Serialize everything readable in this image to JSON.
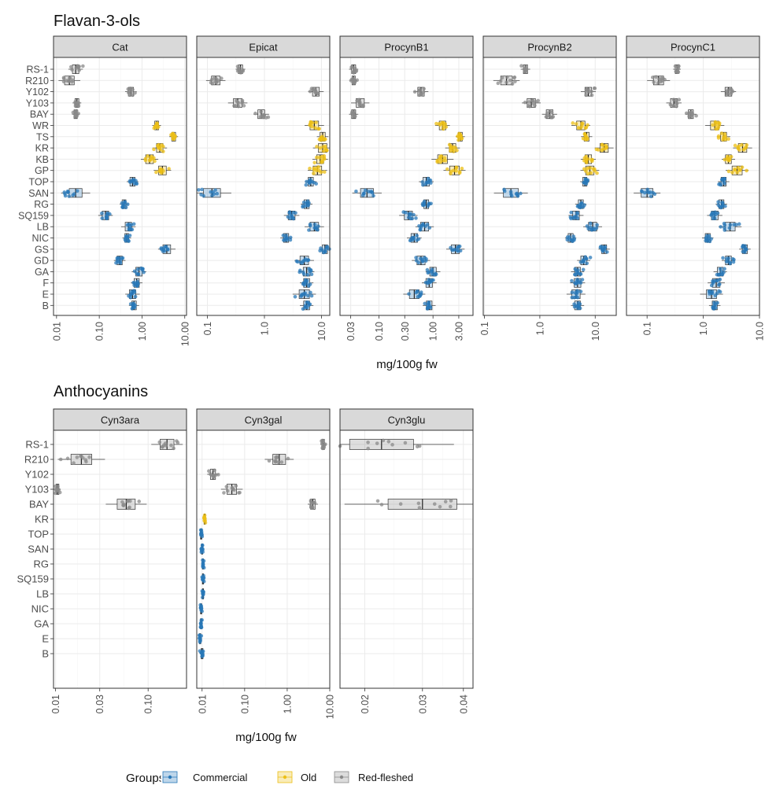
{
  "colors": {
    "Commercial": "#2878b8",
    "Old": "#ecbf16",
    "Red-fleshed": "#8a8a8a",
    "strip_fill": "#d9d9d9",
    "grid_major": "#ebebeb",
    "grid_minor": "#f5f5f5"
  },
  "legend": {
    "title": "Groups",
    "items": [
      "Commercial",
      "Old",
      "Red-fleshed"
    ],
    "position": "bottom"
  },
  "chart_data": [
    {
      "type": "boxplot",
      "orientation": "horizontal",
      "title": "Flavan-3-ols",
      "xlabel": "mg/100g fw",
      "x_scale": "log10",
      "grid": true,
      "categories": [
        "RS-1",
        "R210",
        "Y102",
        "Y103",
        "BAY",
        "WR",
        "TS",
        "KR",
        "KB",
        "GP",
        "TOP",
        "SAN",
        "RG",
        "SQ159",
        "LB",
        "NIC",
        "GS",
        "GD",
        "GA",
        "F",
        "E",
        "B"
      ],
      "category_groups": {
        "RS-1": "Red-fleshed",
        "R210": "Red-fleshed",
        "Y102": "Red-fleshed",
        "Y103": "Red-fleshed",
        "BAY": "Red-fleshed",
        "WR": "Old",
        "TS": "Old",
        "KR": "Old",
        "KB": "Old",
        "GP": "Old",
        "TOP": "Commercial",
        "SAN": "Commercial",
        "RG": "Commercial",
        "SQ159": "Commercial",
        "LB": "Commercial",
        "NIC": "Commercial",
        "GS": "Commercial",
        "GD": "Commercial",
        "GA": "Commercial",
        "F": "Commercial",
        "E": "Commercial",
        "B": "Commercial"
      },
      "panels": [
        {
          "name": "Cat",
          "xlim": [
            0.0085,
            11
          ],
          "ticks": [
            0.01,
            0.1,
            1,
            10
          ],
          "tick_labels": [
            "0.01",
            "0.10",
            "1.00",
            "10.00"
          ],
          "medians": [
            0.028,
            0.02,
            0.55,
            0.03,
            0.028,
            2.2,
            5.5,
            2.6,
            1.5,
            3.0,
            0.6,
            0.028,
            0.38,
            0.14,
            0.48,
            0.44,
            3.8,
            0.3,
            0.85,
            0.75,
            0.6,
            0.65
          ],
          "spreads": [
            0.1,
            0.15,
            0.08,
            0.06,
            0.05,
            0.06,
            0.06,
            0.1,
            0.12,
            0.12,
            0.08,
            0.2,
            0.06,
            0.1,
            0.1,
            0.06,
            0.12,
            0.08,
            0.1,
            0.08,
            0.1,
            0.07
          ]
        },
        {
          "name": "Epicat",
          "xlim": [
            0.065,
            14
          ],
          "ticks": [
            0.1,
            1,
            10
          ],
          "tick_labels": [
            "0.1",
            "1.0",
            "10.0"
          ],
          "medians": [
            0.38,
            0.14,
            8.0,
            0.34,
            0.88,
            7.5,
            10.5,
            10.5,
            9.5,
            8.5,
            6.5,
            0.12,
            5.5,
            3.0,
            7.5,
            2.4,
            11.5,
            5.0,
            5.5,
            5.5,
            5.0,
            5.5
          ],
          "spreads": [
            0.05,
            0.1,
            0.08,
            0.1,
            0.08,
            0.1,
            0.06,
            0.1,
            0.08,
            0.1,
            0.06,
            0.2,
            0.06,
            0.08,
            0.1,
            0.06,
            0.06,
            0.1,
            0.08,
            0.07,
            0.12,
            0.07
          ]
        },
        {
          "name": "ProcynB1",
          "xlim": [
            0.019,
            5.5
          ],
          "ticks": [
            0.03,
            0.1,
            0.3,
            1,
            3
          ],
          "tick_labels": [
            "0.03",
            "0.10",
            "0.30",
            "1.00",
            "3.00"
          ],
          "medians": [
            0.034,
            0.034,
            0.6,
            0.045,
            0.034,
            1.5,
            3.2,
            2.3,
            1.5,
            2.5,
            0.75,
            0.06,
            0.75,
            0.35,
            0.7,
            0.45,
            2.6,
            0.6,
            1.0,
            0.85,
            0.45,
            0.85
          ],
          "spreads": [
            0.05,
            0.04,
            0.08,
            0.1,
            0.05,
            0.08,
            0.05,
            0.08,
            0.12,
            0.12,
            0.08,
            0.16,
            0.06,
            0.1,
            0.1,
            0.08,
            0.1,
            0.1,
            0.08,
            0.08,
            0.12,
            0.07
          ]
        },
        {
          "name": "ProcynB2",
          "xlim": [
            0.095,
            24
          ],
          "ticks": [
            0.1,
            1,
            10
          ],
          "tick_labels": [
            "0.1",
            "1.0",
            "10.0"
          ],
          "medians": [
            0.55,
            0.25,
            7.5,
            0.7,
            1.5,
            5.5,
            7.0,
            14.5,
            7.5,
            8.0,
            6.5,
            0.3,
            5.5,
            4.5,
            9.0,
            3.6,
            14.5,
            6.2,
            4.8,
            4.8,
            4.5,
            4.8
          ],
          "spreads": [
            0.05,
            0.14,
            0.08,
            0.1,
            0.08,
            0.1,
            0.06,
            0.1,
            0.08,
            0.1,
            0.05,
            0.18,
            0.06,
            0.08,
            0.1,
            0.06,
            0.06,
            0.07,
            0.07,
            0.08,
            0.1,
            0.07
          ]
        },
        {
          "name": "ProcynC1",
          "xlim": [
            0.043,
            10
          ],
          "ticks": [
            0.1,
            1,
            10
          ],
          "tick_labels": [
            "0.1",
            "1.0",
            "10.0"
          ],
          "medians": [
            0.34,
            0.16,
            2.8,
            0.3,
            0.6,
            1.6,
            2.3,
            5.0,
            2.8,
            4.0,
            2.3,
            0.1,
            2.1,
            1.6,
            3.0,
            1.2,
            5.5,
            2.8,
            2.0,
            1.7,
            1.4,
            1.6
          ],
          "spreads": [
            0.04,
            0.12,
            0.08,
            0.08,
            0.06,
            0.1,
            0.07,
            0.1,
            0.07,
            0.12,
            0.06,
            0.14,
            0.06,
            0.08,
            0.12,
            0.06,
            0.06,
            0.07,
            0.07,
            0.09,
            0.12,
            0.06
          ]
        }
      ]
    },
    {
      "type": "boxplot",
      "orientation": "horizontal",
      "title": "Anthocyanins",
      "xlabel": "mg/100g fw",
      "x_scale": "log10",
      "grid": true,
      "categories": [
        "RS-1",
        "R210",
        "Y102",
        "Y103",
        "BAY",
        "KR",
        "TOP",
        "SAN",
        "RG",
        "SQ159",
        "LB",
        "NIC",
        "GA",
        "E",
        "B"
      ],
      "category_groups": {
        "RS-1": "Red-fleshed",
        "R210": "Red-fleshed",
        "Y102": "Red-fleshed",
        "Y103": "Red-fleshed",
        "BAY": "Red-fleshed",
        "KR": "Old",
        "TOP": "Commercial",
        "SAN": "Commercial",
        "RG": "Commercial",
        "SQ159": "Commercial",
        "LB": "Commercial",
        "NIC": "Commercial",
        "GA": "Commercial",
        "E": "Commercial",
        "B": "Commercial"
      },
      "panels": [
        {
          "name": "Cyn3ara",
          "xlim": [
            0.0095,
            0.26
          ],
          "ticks": [
            0.01,
            0.03,
            0.1
          ],
          "tick_labels": [
            "0.01",
            "0.03",
            "0.10"
          ],
          "medians": [
            0.16,
            0.019,
            null,
            0.0105,
            0.058,
            null,
            null,
            null,
            null,
            null,
            null,
            null,
            null,
            null,
            null
          ],
          "spreads": [
            0.1,
            0.15,
            0,
            0.02,
            0.13,
            0,
            0,
            0,
            0,
            0,
            0,
            0,
            0,
            0,
            0
          ]
        },
        {
          "name": "Cyn3gal",
          "xlim": [
            0.0075,
            10
          ],
          "ticks": [
            0.01,
            0.1,
            1,
            10
          ],
          "tick_labels": [
            "0.01",
            "0.10",
            "1.00",
            "10.00"
          ],
          "medians": [
            7.0,
            0.65,
            0.018,
            0.05,
            4.0,
            0.0115,
            0.0095,
            0.01,
            0.0105,
            0.0105,
            0.0105,
            0.0095,
            0.0095,
            0.009,
            0.01
          ],
          "spreads": [
            0.04,
            0.2,
            0.08,
            0.15,
            0.07,
            0.02,
            0.02,
            0.02,
            0.02,
            0.02,
            0.02,
            0.02,
            0.02,
            0.02,
            0.03
          ]
        },
        {
          "name": "Cyn3glu",
          "xlim": [
            0.0168,
            0.0428
          ],
          "ticks": [
            0.02,
            0.03,
            0.04
          ],
          "tick_labels": [
            "0.02",
            "0.03",
            "0.04"
          ],
          "medians": [
            0.0225,
            null,
            null,
            null,
            0.03,
            null,
            null,
            null,
            null,
            null,
            null,
            null,
            null,
            null,
            null
          ],
          "spreads": [
            0.13,
            0,
            0,
            0,
            0.14,
            0,
            0,
            0,
            0,
            0,
            0,
            0,
            0,
            0,
            0
          ]
        }
      ]
    }
  ]
}
